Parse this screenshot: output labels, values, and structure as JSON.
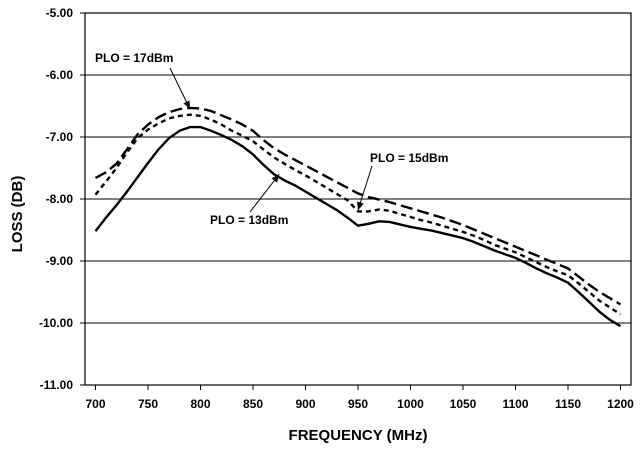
{
  "chart_data": {
    "type": "line",
    "title": "",
    "xlabel": "FREQUENCY (MHz)",
    "ylabel": "LOSS (DB)",
    "xlim": [
      690,
      1210
    ],
    "ylim": [
      -11,
      -5
    ],
    "x_ticks": [
      700,
      750,
      800,
      850,
      900,
      950,
      1000,
      1050,
      1100,
      1150,
      1200
    ],
    "y_ticks": [
      -5,
      -6,
      -7,
      -8,
      -9,
      -10,
      -11
    ],
    "x_tick_labels": [
      "700",
      "750",
      "800",
      "850",
      "900",
      "950",
      "1000",
      "1050",
      "1100",
      "1150",
      "1200"
    ],
    "y_tick_labels": [
      "-5.00",
      "-6.00",
      "-7.00",
      "-8.00",
      "-9.00",
      "-10.00",
      "-11.00"
    ],
    "grid": "horizontal",
    "legend": "none",
    "series": [
      {
        "name": "PLO = 13dBm",
        "style": "solid",
        "color": "#000000",
        "x": [
          700,
          710,
          720,
          730,
          740,
          750,
          760,
          770,
          780,
          790,
          800,
          810,
          820,
          830,
          840,
          850,
          860,
          870,
          880,
          890,
          900,
          910,
          920,
          930,
          940,
          950,
          960,
          970,
          980,
          990,
          1000,
          1010,
          1020,
          1030,
          1040,
          1050,
          1060,
          1070,
          1080,
          1090,
          1100,
          1110,
          1120,
          1130,
          1140,
          1150,
          1160,
          1170,
          1180,
          1190,
          1200
        ],
        "y": [
          -8.52,
          -8.3,
          -8.1,
          -7.88,
          -7.65,
          -7.42,
          -7.2,
          -7.02,
          -6.9,
          -6.84,
          -6.84,
          -6.9,
          -6.97,
          -7.05,
          -7.15,
          -7.28,
          -7.45,
          -7.6,
          -7.7,
          -7.78,
          -7.88,
          -7.98,
          -8.08,
          -8.18,
          -8.3,
          -8.43,
          -8.4,
          -8.36,
          -8.37,
          -8.41,
          -8.45,
          -8.48,
          -8.51,
          -8.55,
          -8.59,
          -8.63,
          -8.69,
          -8.76,
          -8.83,
          -8.89,
          -8.95,
          -9.03,
          -9.12,
          -9.2,
          -9.27,
          -9.35,
          -9.5,
          -9.66,
          -9.82,
          -9.95,
          -10.05
        ]
      },
      {
        "name": "PLO = 15dBm",
        "style": "short-dash",
        "color": "#000000",
        "x": [
          700,
          710,
          720,
          730,
          740,
          750,
          760,
          770,
          780,
          790,
          800,
          810,
          820,
          830,
          840,
          850,
          860,
          870,
          880,
          890,
          900,
          910,
          920,
          930,
          940,
          950,
          960,
          970,
          980,
          990,
          1000,
          1010,
          1020,
          1030,
          1040,
          1050,
          1060,
          1070,
          1080,
          1090,
          1100,
          1110,
          1120,
          1130,
          1140,
          1150,
          1160,
          1170,
          1180,
          1190,
          1200
        ],
        "y": [
          -7.93,
          -7.72,
          -7.5,
          -7.25,
          -7.02,
          -6.88,
          -6.78,
          -6.7,
          -6.66,
          -6.64,
          -6.66,
          -6.72,
          -6.8,
          -6.9,
          -6.98,
          -7.07,
          -7.2,
          -7.33,
          -7.43,
          -7.53,
          -7.62,
          -7.72,
          -7.82,
          -7.92,
          -8.02,
          -8.2,
          -8.2,
          -8.17,
          -8.19,
          -8.24,
          -8.29,
          -8.34,
          -8.38,
          -8.43,
          -8.48,
          -8.53,
          -8.59,
          -8.66,
          -8.74,
          -8.8,
          -8.86,
          -8.94,
          -9.02,
          -9.1,
          -9.17,
          -9.23,
          -9.36,
          -9.5,
          -9.64,
          -9.75,
          -9.86
        ]
      },
      {
        "name": "PLO = 17dBm",
        "style": "long-dash",
        "color": "#000000",
        "x": [
          700,
          710,
          720,
          730,
          740,
          750,
          760,
          770,
          780,
          790,
          800,
          810,
          820,
          830,
          840,
          850,
          860,
          870,
          880,
          890,
          900,
          910,
          920,
          930,
          940,
          950,
          960,
          970,
          980,
          990,
          1000,
          1010,
          1020,
          1030,
          1040,
          1050,
          1060,
          1070,
          1080,
          1090,
          1100,
          1110,
          1120,
          1130,
          1140,
          1150,
          1160,
          1170,
          1180,
          1190,
          1200
        ],
        "y": [
          -7.66,
          -7.57,
          -7.43,
          -7.2,
          -6.96,
          -6.8,
          -6.68,
          -6.6,
          -6.55,
          -6.53,
          -6.54,
          -6.58,
          -6.65,
          -6.72,
          -6.8,
          -6.9,
          -7.05,
          -7.18,
          -7.28,
          -7.37,
          -7.46,
          -7.55,
          -7.64,
          -7.73,
          -7.82,
          -7.91,
          -7.97,
          -8.01,
          -8.05,
          -8.1,
          -8.15,
          -8.2,
          -8.25,
          -8.3,
          -8.36,
          -8.42,
          -8.49,
          -8.56,
          -8.63,
          -8.7,
          -8.77,
          -8.84,
          -8.91,
          -8.98,
          -9.05,
          -9.12,
          -9.25,
          -9.38,
          -9.5,
          -9.6,
          -9.7
        ]
      }
    ],
    "annotations": [
      {
        "text": "PLO = 17dBm",
        "series": "PLO = 17dBm",
        "x": 790,
        "y": -6.55
      },
      {
        "text": "PLO = 15dBm",
        "series": "PLO = 15dBm",
        "x": 950,
        "y": -8.18
      },
      {
        "text": "PLO = 13dBm",
        "series": "PLO = 13dBm",
        "x": 875,
        "y": -7.6
      }
    ]
  }
}
